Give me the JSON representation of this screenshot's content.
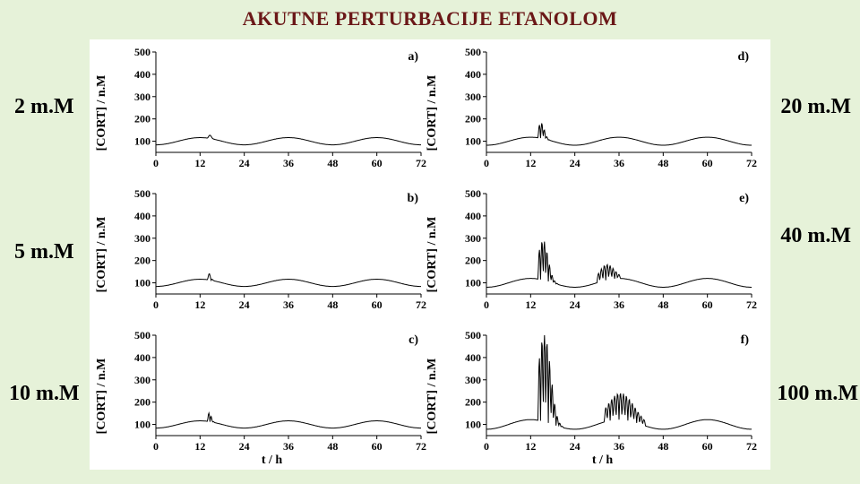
{
  "title": "AKUTNE PERTURBACIJE ETANOLOM",
  "background_color": "#e6f2d9",
  "figure_background": "#ffffff",
  "title_color": "#6b1818",
  "title_fontsize": 22,
  "leftLabels": [
    "2 m.M",
    "5 m.M",
    "10 m.M"
  ],
  "rightLabels": [
    "20 m.M",
    "40 m.M",
    "100 m.M"
  ],
  "label_fontsize": 24,
  "axis": {
    "ylabel": "[CORT] / n.M",
    "xlabel": "t / h",
    "xlim": [
      0,
      72
    ],
    "ylim": [
      50,
      500
    ],
    "xticks": [
      0,
      12,
      24,
      36,
      48,
      60,
      72
    ],
    "yticks": [
      100,
      200,
      300,
      400,
      500
    ],
    "tick_fontsize": 12,
    "label_fontsize": 14,
    "line_color": "#000000",
    "line_width": 1,
    "series_line_width": 1
  },
  "panels": [
    {
      "id": "a",
      "letter": "a)",
      "type": "line",
      "baseline": 100,
      "wave_amp": 18,
      "wave_period": 24,
      "perturb_t": 14,
      "perturb_height": 18,
      "n_spikes": 1
    },
    {
      "id": "d",
      "letter": "d)",
      "type": "line",
      "baseline": 100,
      "wave_amp": 20,
      "wave_period": 24,
      "perturb_t": 14,
      "perturb_height": 70,
      "n_spikes": 5
    },
    {
      "id": "b",
      "letter": "b)",
      "type": "line",
      "baseline": 100,
      "wave_amp": 18,
      "wave_period": 24,
      "perturb_t": 14,
      "perturb_height": 28,
      "n_spikes": 2
    },
    {
      "id": "e",
      "letter": "e)",
      "type": "line",
      "baseline": 100,
      "wave_amp": 22,
      "wave_period": 24,
      "perturb_t": 14,
      "perturb_height": 180,
      "n_spikes": 8,
      "secondary_t": 30,
      "secondary_height": 70,
      "secondary_spikes": 8
    },
    {
      "id": "c",
      "letter": "c)",
      "type": "line",
      "baseline": 100,
      "wave_amp": 18,
      "wave_period": 24,
      "perturb_t": 14,
      "perturb_height": 40,
      "n_spikes": 3
    },
    {
      "id": "f",
      "letter": "f)",
      "type": "line",
      "baseline": 100,
      "wave_amp": 24,
      "wave_period": 24,
      "perturb_t": 14,
      "perturb_height": 400,
      "n_spikes": 10,
      "secondary_t": 32,
      "secondary_height": 120,
      "secondary_spikes": 14
    }
  ]
}
